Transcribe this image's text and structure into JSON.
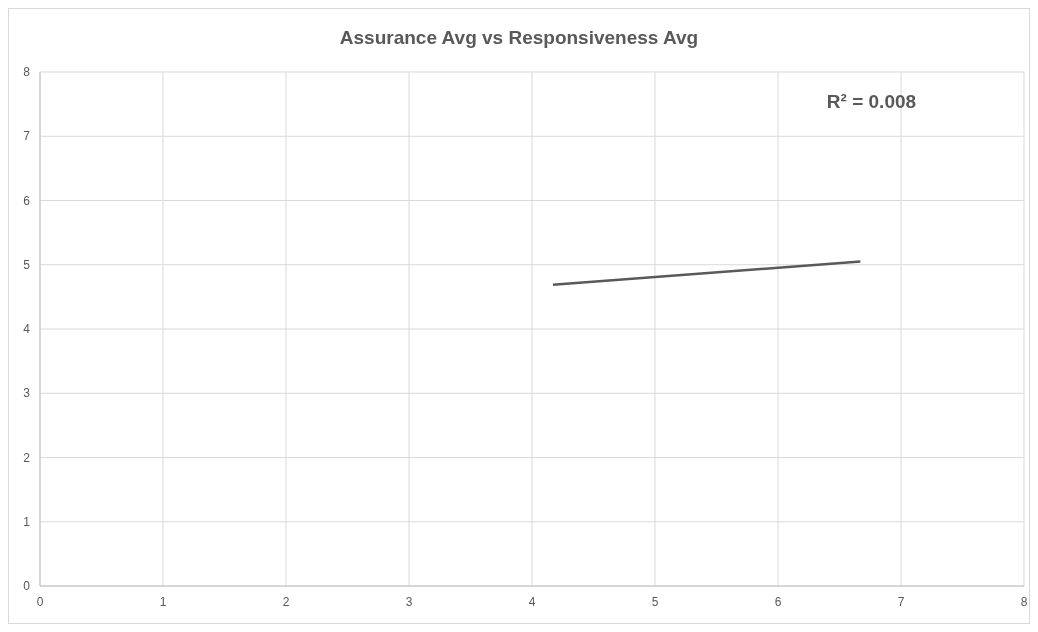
{
  "chart_data": {
    "type": "line",
    "title": "Assurance Avg vs Responsiveness Avg",
    "series": [
      {
        "x": [
          4.17,
          6.67
        ],
        "values": [
          4.69,
          5.05
        ],
        "color": "#595959"
      }
    ],
    "xlim": [
      0,
      8
    ],
    "xticks": [
      0,
      1,
      2,
      3,
      4,
      5,
      6,
      7,
      8
    ],
    "ylim": [
      0,
      8
    ],
    "yticks": [
      0,
      1,
      2,
      3,
      4,
      5,
      6,
      7,
      8
    ],
    "grid": true,
    "marker": "none",
    "line_style": "solid",
    "annotations": [
      "R² = 0.008"
    ]
  }
}
